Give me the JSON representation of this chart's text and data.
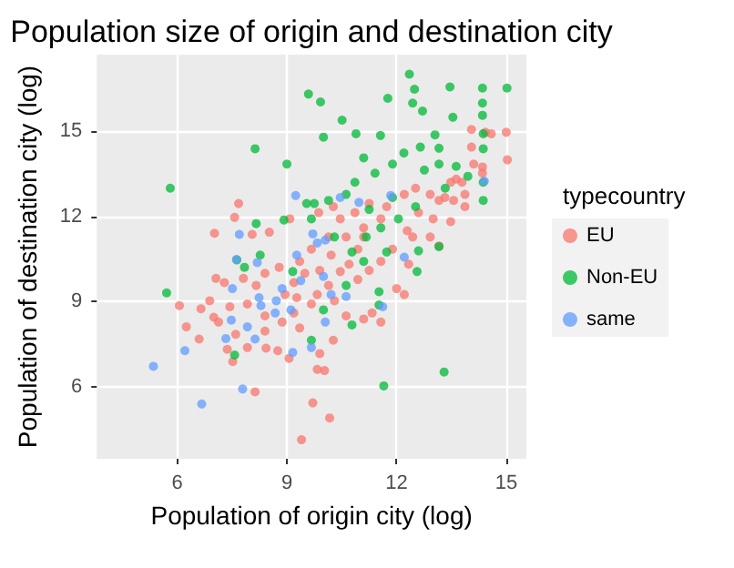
{
  "chart_data": {
    "type": "scatter",
    "title": "Population size of origin and destination city",
    "xlabel": "Population of origin city (log)",
    "ylabel": "Population of destination city (log)",
    "legend_title": "typecountry",
    "xlim": [
      3.8,
      15.55
    ],
    "ylim": [
      3.45,
      17.7
    ],
    "xticks": [
      6,
      9,
      12,
      15
    ],
    "yticks": [
      6,
      9,
      12,
      15
    ],
    "grid": true,
    "legend": "right",
    "marker": "circle",
    "series": [
      {
        "name": "EU",
        "color": "#f8766d",
        "x": [
          9.4,
          10.17,
          9.71,
          8.13,
          6.06,
          6.25,
          6.65,
          6.6,
          7.02,
          7.68,
          7.57,
          8.05,
          8.52,
          7.06,
          7.29,
          7.81,
          6.89,
          7.0,
          7.44,
          7.37,
          7.52,
          7.92,
          8.43,
          8.75,
          9.06,
          9.83,
          10.03,
          9.9,
          10.27,
          10.62,
          11.1,
          11.33,
          11.57,
          12.0,
          12.21,
          12.33,
          12.92,
          13.16,
          13.48,
          13.87,
          13.87,
          13.79,
          13.63,
          14.05,
          14.05,
          14.43,
          14.59,
          15.0,
          15.03,
          14.35,
          14.35,
          14.11,
          13.32,
          13.0,
          12.6,
          12.29,
          11.57,
          11.1,
          10.62,
          10.21,
          9.9,
          9.49,
          9.19,
          8.95,
          8.79,
          9.35,
          9.67,
          10.14,
          10.46,
          10.86,
          11.25,
          11.73,
          12.21,
          12.52,
          12.92,
          13.16,
          9.08,
          9.87,
          10.27,
          8.4,
          8.16,
          7.92,
          8.4,
          8.87,
          9.35,
          9.67,
          9.27,
          10.14,
          10.46,
          10.94,
          11.25,
          11.57,
          11.89,
          12.44,
          10.94,
          8.4,
          7.6,
          7.13,
          9.19,
          10.3,
          9.83,
          10.7,
          11.1,
          13.48,
          13.56
        ],
        "values": [
          4.12,
          4.89,
          5.42,
          5.81,
          8.85,
          8.1,
          8.74,
          7.67,
          11.4,
          12.45,
          11.96,
          11.36,
          11.44,
          9.81,
          9.66,
          9.81,
          9.02,
          8.44,
          8.81,
          7.31,
          6.88,
          7.37,
          7.35,
          7.26,
          6.99,
          6.6,
          6.56,
          7.16,
          7.63,
          8.49,
          8.38,
          8.59,
          8.27,
          9.45,
          9.24,
          10.31,
          11.27,
          10.95,
          11.81,
          12.34,
          12.77,
          13.2,
          13.31,
          14.44,
          15.06,
          14.96,
          14.91,
          14.96,
          13.99,
          13.74,
          13.52,
          13.84,
          12.66,
          11.91,
          12.13,
          11.49,
          11.91,
          11.59,
          11.27,
          10.63,
          10.09,
          9.99,
          9.66,
          9.24,
          10.2,
          10.41,
          10.84,
          11.27,
          11.91,
          12.13,
          12.45,
          12.34,
          12.77,
          12.99,
          12.77,
          12.56,
          11.91,
          12.13,
          12.34,
          9.99,
          9.56,
          8.91,
          8.49,
          8.27,
          8.06,
          8.91,
          9.13,
          9.56,
          10.05,
          9.77,
          10.09,
          10.41,
          10.84,
          11.27,
          10.84,
          7.95,
          7.84,
          8.27,
          8.59,
          9.02,
          9.24,
          10.31,
          11.27,
          13.2,
          12.56
        ]
      },
      {
        "name": "Non-EU",
        "color": "#00ba38",
        "x": [
          5.81,
          5.71,
          8.13,
          9.59,
          9.92,
          10.51,
          10.0,
          9.0,
          7.57,
          11.76,
          12.35,
          12.49,
          12.44,
          12.71,
          13.46,
          13.54,
          14.35,
          14.35,
          14.35,
          14.37,
          15.02,
          13.3,
          11.65,
          11.56,
          10.89,
          11.1,
          12.2,
          12.65,
          13.16,
          13.16,
          13.05,
          13.63,
          14.37,
          14.37,
          14.37,
          13.95,
          13.33,
          12.76,
          11.89,
          11.41,
          10.86,
          10.62,
          10.14,
          9.75,
          9.54,
          8.92,
          8.16,
          8.27,
          7.84,
          7.63,
          9.16,
          9.67,
          10.3,
          10.78,
          11.17,
          11.57,
          12.05,
          12.52,
          11.89,
          11.25,
          11.1,
          11.73,
          12.6,
          12.56,
          13.16,
          11.52,
          10.78,
          11.52,
          9.67,
          10.62,
          10.0
        ],
        "values": [
          12.99,
          9.3,
          14.38,
          16.31,
          16.03,
          15.39,
          14.79,
          13.84,
          7.11,
          16.16,
          17.01,
          16.48,
          15.99,
          15.71,
          16.56,
          15.49,
          16.52,
          15.99,
          15.56,
          14.91,
          16.52,
          6.51,
          6.02,
          14.85,
          14.91,
          14.06,
          14.23,
          14.44,
          14.4,
          13.84,
          14.87,
          13.76,
          14.38,
          13.2,
          12.56,
          13.41,
          12.99,
          13.63,
          13.84,
          13.52,
          13.2,
          12.77,
          12.56,
          12.45,
          12.45,
          11.87,
          11.74,
          10.63,
          10.2,
          10.46,
          10.05,
          11.91,
          11.27,
          10.74,
          11.27,
          11.59,
          11.91,
          12.34,
          12.66,
          12.24,
          10.41,
          10.74,
          10.78,
          10.05,
          10.93,
          9.34,
          8.17,
          8.87,
          7.63,
          9.56,
          8.7
        ]
      },
      {
        "name": "same",
        "color": "#619cff",
        "x": [
          5.35,
          6.67,
          7.79,
          6.21,
          7.33,
          7.48,
          7.51,
          7.7,
          7.62,
          8.19,
          8.24,
          8.29,
          7.92,
          8.13,
          8.68,
          9.16,
          9.67,
          9.24,
          9.71,
          10.05,
          10.46,
          10.97,
          11.84,
          12.21,
          11.62,
          10.62,
          10.0,
          9.38,
          8.87,
          8.71,
          9.11,
          10.05,
          10.21,
          14.4,
          9.27,
          9.83
        ],
        "values": [
          6.71,
          5.38,
          5.91,
          7.26,
          7.69,
          8.34,
          9.45,
          11.36,
          10.48,
          10.37,
          9.13,
          8.85,
          8.1,
          7.67,
          8.59,
          7.2,
          7.37,
          12.73,
          11.38,
          11.16,
          12.66,
          12.49,
          12.73,
          10.56,
          8.81,
          9.17,
          9.88,
          9.73,
          9.45,
          9.02,
          8.7,
          8.27,
          9.24,
          13.24,
          10.63,
          11.06
        ]
      }
    ]
  }
}
